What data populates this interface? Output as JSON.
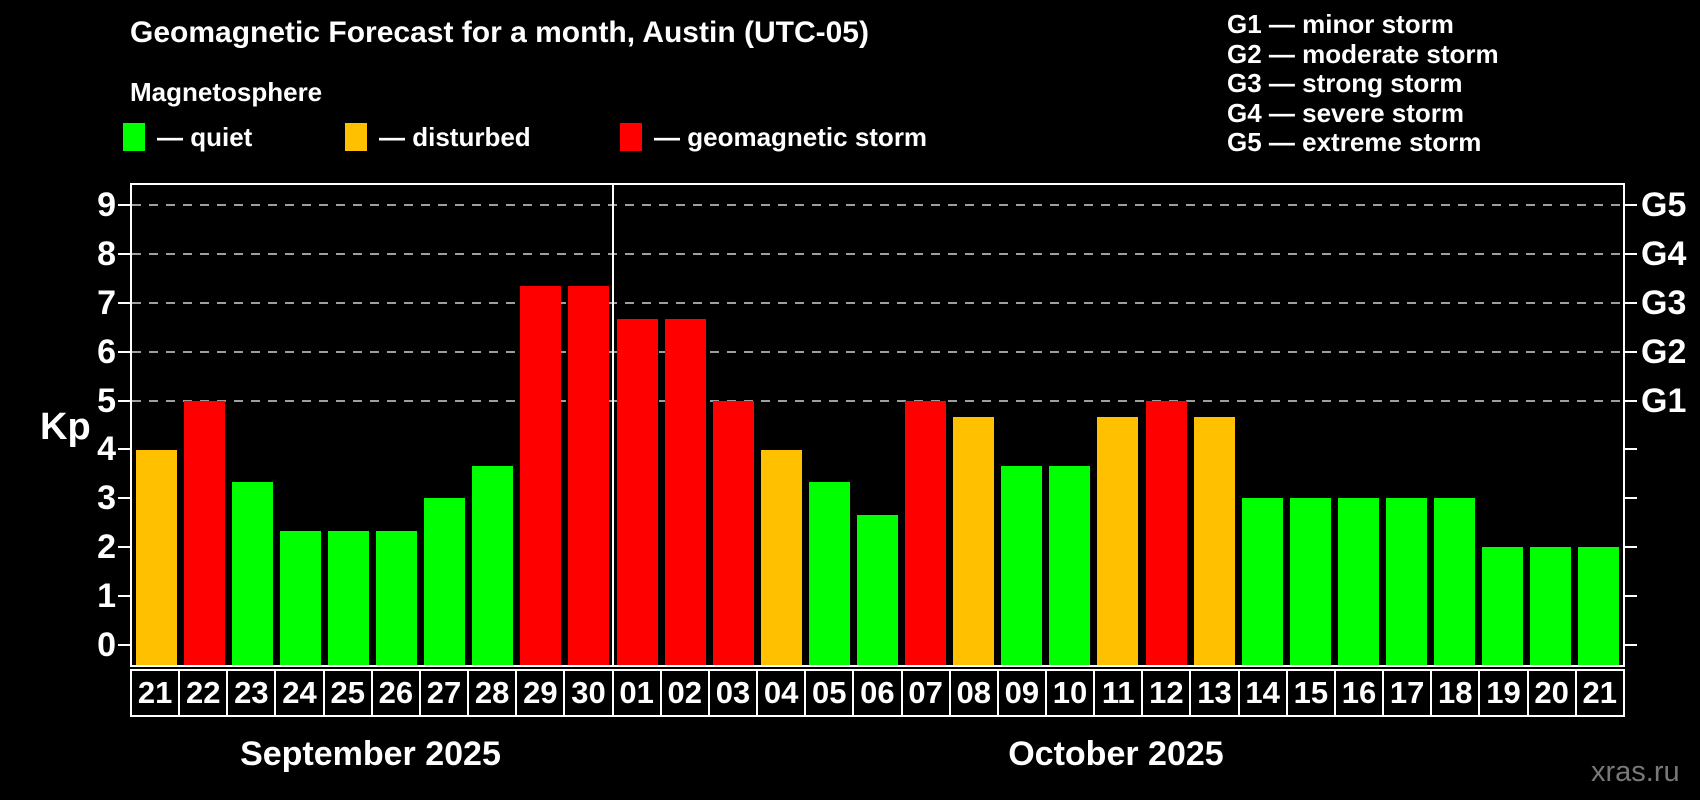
{
  "title": "Geomagnetic Forecast for a month, Austin (UTC-05)",
  "subtitle": "Magnetosphere",
  "legend": [
    {
      "key": "quiet",
      "label": "— quiet",
      "color": "#00ff00"
    },
    {
      "key": "disturbed",
      "label": "— disturbed",
      "color": "#ffc000"
    },
    {
      "key": "storm",
      "label": "— geomagnetic storm",
      "color": "#ff0000"
    }
  ],
  "g_legend": [
    "G1 — minor storm",
    "G2 — moderate storm",
    "G3 — strong storm",
    "G4 — severe storm",
    "G5 — extreme storm"
  ],
  "watermark": "xras.ru",
  "colors": {
    "quiet": "#00ff00",
    "disturbed": "#ffc000",
    "storm": "#ff0000",
    "grid": "#9e9e9e",
    "frame": "#ffffff"
  },
  "chart_data": {
    "type": "bar",
    "title": "Geomagnetic Forecast for a month, Austin (UTC-05)",
    "ylabel": "Kp",
    "xlabel": "",
    "ylim": [
      -0.4,
      9.4
    ],
    "y_ticks": [
      0,
      1,
      2,
      3,
      4,
      5,
      6,
      7,
      8,
      9
    ],
    "grid_levels": [
      5,
      6,
      7,
      8,
      9
    ],
    "right_axis_labels": [
      {
        "level": 5,
        "label": "G1"
      },
      {
        "level": 6,
        "label": "G2"
      },
      {
        "level": 7,
        "label": "G3"
      },
      {
        "level": 8,
        "label": "G4"
      },
      {
        "level": 9,
        "label": "G5"
      }
    ],
    "grid": true,
    "legend_position": "top-left",
    "months": [
      {
        "label": "September 2025",
        "start_index": 0,
        "days": 10
      },
      {
        "label": "October 2025",
        "start_index": 10,
        "days": 21
      }
    ],
    "categories": [
      "21",
      "22",
      "23",
      "24",
      "25",
      "26",
      "27",
      "28",
      "29",
      "30",
      "01",
      "02",
      "03",
      "04",
      "05",
      "06",
      "07",
      "08",
      "09",
      "10",
      "11",
      "12",
      "13",
      "14",
      "15",
      "16",
      "17",
      "18",
      "19",
      "20",
      "21"
    ],
    "values": [
      4.0,
      5.0,
      3.33,
      2.33,
      2.33,
      2.33,
      3.0,
      3.67,
      7.33,
      7.33,
      6.67,
      6.67,
      5.0,
      4.0,
      3.33,
      2.67,
      5.0,
      4.67,
      3.67,
      3.67,
      4.67,
      5.0,
      4.67,
      3.0,
      3.0,
      3.0,
      3.0,
      3.0,
      2.0,
      2.0,
      2.0
    ],
    "statuses": [
      "disturbed",
      "storm",
      "quiet",
      "quiet",
      "quiet",
      "quiet",
      "quiet",
      "quiet",
      "storm",
      "storm",
      "storm",
      "storm",
      "storm",
      "disturbed",
      "quiet",
      "quiet",
      "storm",
      "disturbed",
      "quiet",
      "quiet",
      "disturbed",
      "storm",
      "disturbed",
      "quiet",
      "quiet",
      "quiet",
      "quiet",
      "quiet",
      "quiet",
      "quiet",
      "quiet"
    ]
  }
}
